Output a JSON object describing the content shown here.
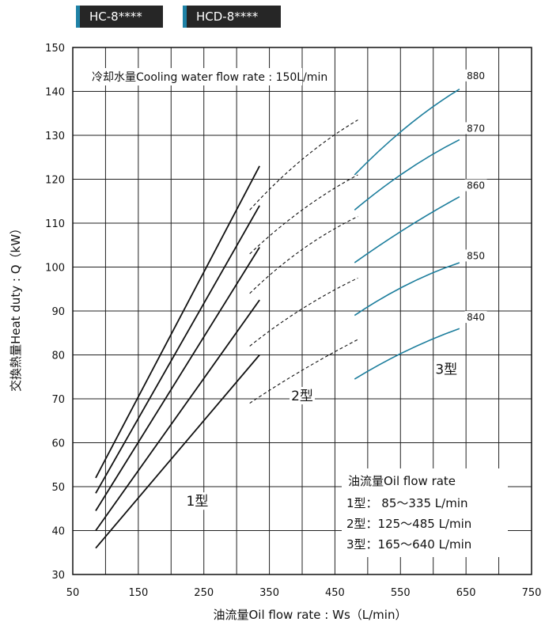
{
  "tags": [
    "HC-8****",
    "HCD-8****"
  ],
  "chart_data": {
    "type": "line",
    "title": "",
    "xlabel": "油流量Oil flow rate : Ws（L/min）",
    "ylabel": "交換熱量Heat duty : Q（kW）",
    "xlim": [
      50,
      750
    ],
    "ylim": [
      30,
      150
    ],
    "xticks": [
      50,
      150,
      250,
      350,
      450,
      550,
      650,
      750
    ],
    "yticks": [
      30,
      40,
      50,
      60,
      70,
      80,
      90,
      100,
      110,
      120,
      130,
      140,
      150
    ],
    "grid": true,
    "annotation": "冷却水量Cooling water flow rate : 150L/min",
    "colors": {
      "type1": "#111111",
      "type2": "#111111",
      "type3": "#1b7d9c"
    },
    "legend": {
      "title": "油流量Oil flow rate",
      "lines": [
        "1型：  85～335 L/min",
        "2型：125～485 L/min",
        "3型：165～640 L/min"
      ]
    },
    "type_labels": [
      {
        "text": "1型",
        "x": 240,
        "y": 46
      },
      {
        "text": "2型",
        "x": 400,
        "y": 70
      },
      {
        "text": "3型",
        "x": 620,
        "y": 76
      }
    ],
    "series": [
      {
        "name": "840",
        "label_x": 665,
        "label_y": 88,
        "type1": [
          [
            85,
            36
          ],
          [
            335,
            80
          ]
        ],
        "type2": [
          [
            320,
            69
          ],
          [
            400,
            76.5
          ],
          [
            485,
            83.5
          ]
        ],
        "type3": [
          [
            480,
            74.5
          ],
          [
            560,
            81
          ],
          [
            640,
            86
          ]
        ]
      },
      {
        "name": "850",
        "label_x": 665,
        "label_y": 102,
        "type1": [
          [
            85,
            40
          ],
          [
            335,
            92.5
          ]
        ],
        "type2": [
          [
            320,
            82
          ],
          [
            400,
            90.5
          ],
          [
            485,
            97.5
          ]
        ],
        "type3": [
          [
            480,
            89
          ],
          [
            560,
            96
          ],
          [
            640,
            101
          ]
        ]
      },
      {
        "name": "860",
        "label_x": 665,
        "label_y": 118,
        "type1": [
          [
            85,
            44.5
          ],
          [
            335,
            104.5
          ]
        ],
        "type2": [
          [
            320,
            94
          ],
          [
            400,
            104
          ],
          [
            485,
            111.5
          ]
        ],
        "type3": [
          [
            480,
            101
          ],
          [
            560,
            109
          ],
          [
            640,
            116
          ]
        ]
      },
      {
        "name": "870",
        "label_x": 665,
        "label_y": 131,
        "type1": [
          [
            85,
            48.5
          ],
          [
            335,
            114
          ]
        ],
        "type2": [
          [
            320,
            103
          ],
          [
            400,
            113
          ],
          [
            485,
            121
          ]
        ],
        "type3": [
          [
            480,
            113
          ],
          [
            560,
            122
          ],
          [
            640,
            129
          ]
        ]
      },
      {
        "name": "880",
        "label_x": 665,
        "label_y": 143,
        "type1": [
          [
            85,
            52
          ],
          [
            335,
            123
          ]
        ],
        "type2": [
          [
            320,
            113
          ],
          [
            400,
            124.5
          ],
          [
            485,
            133.5
          ]
        ],
        "type3": [
          [
            480,
            121
          ],
          [
            560,
            132
          ],
          [
            640,
            140.5
          ]
        ]
      }
    ]
  }
}
